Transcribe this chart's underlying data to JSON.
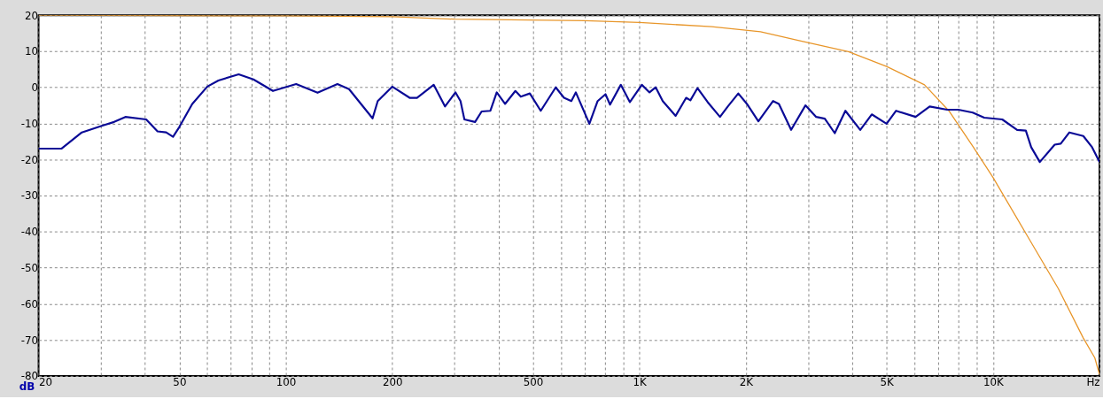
{
  "chart_data": {
    "type": "line",
    "ylabel": "dB",
    "xlim": [
      20,
      20000
    ],
    "ylim": [
      -80,
      20
    ],
    "log": "x",
    "xticks": [
      20,
      {
        "value": 30,
        "label": null
      },
      {
        "value": 40,
        "label": null
      },
      50,
      {
        "value": 60,
        "label": null
      },
      {
        "value": 70,
        "label": null
      },
      {
        "value": 80,
        "label": null
      },
      {
        "value": 90,
        "label": null
      },
      100,
      200,
      {
        "value": 300,
        "label": null
      },
      {
        "value": 400,
        "label": null
      },
      500,
      {
        "value": 600,
        "label": null
      },
      {
        "value": 700,
        "label": null
      },
      {
        "value": 800,
        "label": null
      },
      {
        "value": 900,
        "label": null
      },
      {
        "value": 1000,
        "label": "1K"
      },
      {
        "value": 2000,
        "label": "2K"
      },
      {
        "value": 3000,
        "label": null
      },
      {
        "value": 4000,
        "label": null
      },
      {
        "value": 5000,
        "label": "5K"
      },
      {
        "value": 6000,
        "label": null
      },
      {
        "value": 7000,
        "label": null
      },
      {
        "value": 8000,
        "label": null
      },
      {
        "value": 9000,
        "label": null
      },
      {
        "value": 10000,
        "label": "10K"
      },
      {
        "value": 20000,
        "label": "Hz"
      }
    ],
    "yticks": [
      -80,
      -70,
      -60,
      -50,
      -40,
      -30,
      -20,
      -10,
      0,
      10,
      20
    ],
    "grid": true,
    "line_style": "solid",
    "marker": "none",
    "legend": false,
    "series": [
      {
        "color": "#e8962a",
        "x": [
          20,
          100,
          200,
          300,
          700,
          1000,
          1600,
          2200,
          2900,
          3900,
          5000,
          6400,
          7500,
          8800,
          10000,
          12400,
          15300,
          18000,
          19400,
          20000
        ],
        "values": [
          20,
          19.8,
          19.6,
          18.9,
          18.5,
          18,
          16.8,
          15.4,
          12.7,
          9.9,
          5.8,
          0.7,
          -6.5,
          -16.6,
          -25,
          -40.6,
          -55.8,
          -69.5,
          -75,
          -79.6
        ]
      },
      {
        "color": "#0a0a96",
        "x": [
          20,
          23.2,
          26.5,
          30.3,
          32.7,
          35.2,
          40.3,
          43.4,
          45.9,
          48,
          50,
          54.4,
          60,
          64.5,
          73.6,
          81,
          92,
          107,
          123,
          140,
          151,
          176,
          182,
          200,
          224,
          235,
          262,
          282,
          302,
          312,
          320,
          343,
          358,
          379,
          395,
          417,
          446,
          462,
          490,
          526,
          580,
          612,
          642,
          661,
          722,
          762,
          802,
          826,
          886,
          940,
          1016,
          1068,
          1112,
          1164,
          1266,
          1356,
          1394,
          1460,
          1560,
          1690,
          1778,
          1904,
          2014,
          2170,
          2388,
          2480,
          2686,
          2948,
          3162,
          3344,
          3568,
          3824,
          4212,
          4540,
          5000,
          5320,
          6040,
          6620,
          7420,
          7980,
          8760,
          9440,
          10620,
          11700,
          12380,
          12820,
          13560,
          14940,
          15540,
          16440,
          18000,
          19060,
          20000
        ],
        "values": [
          -17,
          -17,
          -12.5,
          -10.6,
          -9.6,
          -8.2,
          -8.9,
          -12.2,
          -12.5,
          -13.7,
          -11,
          -4.6,
          0.2,
          1.9,
          3.6,
          2.2,
          -1,
          0.9,
          -1.5,
          0.9,
          -0.5,
          -8.6,
          -3.8,
          0.2,
          -2.9,
          -2.9,
          0.7,
          -5.3,
          -1.4,
          -3.8,
          -8.9,
          -9.6,
          -6.7,
          -6.5,
          -1.4,
          -4.6,
          -1,
          -2.6,
          -1.7,
          -6.5,
          0,
          -2.9,
          -3.8,
          -1.4,
          -10.1,
          -3.8,
          -1.9,
          -4.8,
          0.7,
          -4.1,
          0.7,
          -1.4,
          0,
          -3.8,
          -7.9,
          -2.9,
          -3.6,
          -0.2,
          -4.1,
          -8.2,
          -5.3,
          -1.7,
          -4.6,
          -9.4,
          -3.8,
          -4.6,
          -11.8,
          -5,
          -8.2,
          -8.7,
          -12.7,
          -6.5,
          -11.8,
          -7.5,
          -10.1,
          -6.5,
          -8.2,
          -5.3,
          -6.2,
          -6.2,
          -7,
          -8.4,
          -8.9,
          -11.8,
          -12,
          -16.6,
          -20.7,
          -15.9,
          -15.6,
          -12.5,
          -13.5,
          -16.6,
          -20.7
        ]
      }
    ]
  }
}
